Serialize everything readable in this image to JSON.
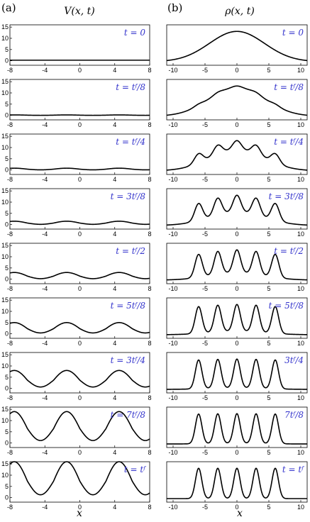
{
  "figure": {
    "panel_a_label": "(a)",
    "panel_b_label": "(b)",
    "col_a_title": "V(x, t)",
    "col_b_title": "ρ(x, t)",
    "xlabel_a": "x",
    "xlabel_b": "x"
  },
  "chart_data": [
    {
      "type": "line",
      "panel": "a",
      "title": "V(x, t)",
      "xlabel": "x",
      "ylabel": "",
      "xlim": [
        -8,
        8
      ],
      "ylim": [
        -2,
        16
      ],
      "xticks": [
        "-8",
        "-4",
        "0",
        "4",
        "8"
      ],
      "yticks": [
        "0",
        "5",
        "10",
        "15"
      ],
      "series": [
        {
          "label": "t = 0",
          "amplitude": 0.0
        },
        {
          "label": "t = t_f/8",
          "amplitude": 0.2
        },
        {
          "label": "t = t_f/4",
          "amplitude": 0.8
        },
        {
          "label": "t = 3t_f/8",
          "amplitude": 1.5
        },
        {
          "label": "t = t_f/2",
          "amplitude": 3.0
        },
        {
          "label": "t = 5t_f/8",
          "amplitude": 5.0
        },
        {
          "label": "t = 3t_f/4",
          "amplitude": 8.0
        },
        {
          "label": "t = 7t_f/8",
          "amplitude": 14.0
        },
        {
          "label": "t = t_f",
          "amplitude": 16.0
        }
      ]
    },
    {
      "type": "line",
      "panel": "b",
      "title": "ρ(x, t)",
      "xlabel": "x",
      "ylabel": "",
      "xlim": [
        -11,
        11
      ],
      "xticks": [
        "-10",
        "-5",
        "0",
        "5",
        "10"
      ],
      "peak_positions": [
        -6,
        -3,
        0,
        3,
        6
      ],
      "series": [
        {
          "label": "t = 0",
          "modulation": 0.0
        },
        {
          "label": "t = t_f/8",
          "modulation": 0.05
        },
        {
          "label": "t = t_f/4",
          "modulation": 0.3
        },
        {
          "label": "t = 3t_f/8",
          "modulation": 0.55
        },
        {
          "label": "t = t_f/2",
          "modulation": 0.75
        },
        {
          "label": "t = 5t_f/8",
          "modulation": 0.88
        },
        {
          "label": "3t_f/4",
          "modulation": 0.95
        },
        {
          "label": "7t_f/8",
          "modulation": 0.98
        },
        {
          "label": "t = t_f",
          "modulation": 1.0
        }
      ]
    }
  ]
}
